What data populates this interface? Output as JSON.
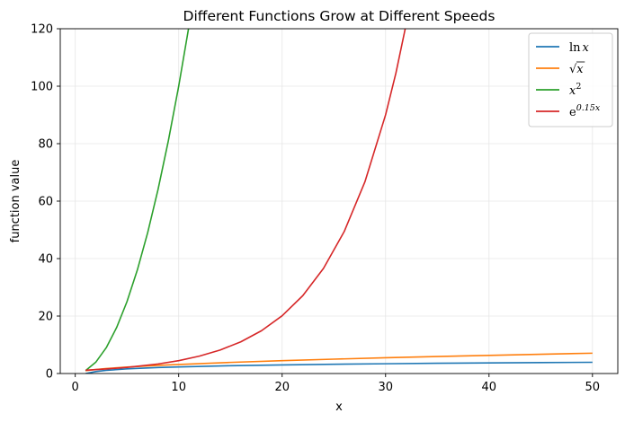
{
  "chart_data": {
    "type": "line",
    "title": "Different Functions Grow at Different Speeds",
    "xlabel": "x",
    "ylabel": "function value",
    "xlim": [
      -1.45,
      52.45
    ],
    "ylim": [
      0,
      120
    ],
    "xticks": [
      0,
      10,
      20,
      30,
      40,
      50
    ],
    "yticks": [
      0,
      20,
      40,
      60,
      80,
      100,
      120
    ],
    "grid": true,
    "legend_position": "top-right",
    "series": [
      {
        "name": "ln x",
        "color": "#1f77b4",
        "x": [
          1,
          2,
          3,
          5,
          8,
          10,
          15,
          20,
          25,
          30,
          35,
          40,
          45,
          50
        ],
        "y": [
          0.0,
          0.69,
          1.1,
          1.61,
          2.08,
          2.3,
          2.71,
          3.0,
          3.22,
          3.4,
          3.56,
          3.69,
          3.81,
          3.91
        ]
      },
      {
        "name": "√x",
        "color": "#ff7f0e",
        "x": [
          1,
          2,
          3,
          5,
          8,
          10,
          15,
          20,
          25,
          30,
          35,
          40,
          45,
          50
        ],
        "y": [
          1.0,
          1.41,
          1.73,
          2.24,
          2.83,
          3.16,
          3.87,
          4.47,
          5.0,
          5.48,
          5.92,
          6.32,
          6.71,
          7.07
        ]
      },
      {
        "name": "x²",
        "color": "#2ca02c",
        "x": [
          1,
          2,
          3,
          4,
          5,
          6,
          7,
          8,
          9,
          10,
          10.95
        ],
        "y": [
          1,
          4,
          9,
          16,
          25,
          36,
          49,
          64,
          81,
          100,
          120
        ]
      },
      {
        "name": "e^0.15x",
        "color": "#d62728",
        "x": [
          1,
          3,
          5,
          8,
          10,
          12,
          14,
          16,
          18,
          20,
          22,
          24,
          26,
          28,
          30,
          31,
          31.9
        ],
        "y": [
          1.16,
          1.57,
          2.12,
          3.32,
          4.48,
          6.05,
          8.17,
          11.02,
          14.88,
          20.09,
          27.11,
          36.6,
          49.4,
          66.69,
          90.02,
          104.58,
          120
        ]
      }
    ],
    "legend": [
      {
        "label": "ln",
        "var": "x",
        "sup": ""
      },
      {
        "label": "√",
        "var": "x",
        "sup": ""
      },
      {
        "label": "",
        "var": "x",
        "sup": "2"
      },
      {
        "label": "e",
        "var": "",
        "sup": "0.15x"
      }
    ]
  }
}
